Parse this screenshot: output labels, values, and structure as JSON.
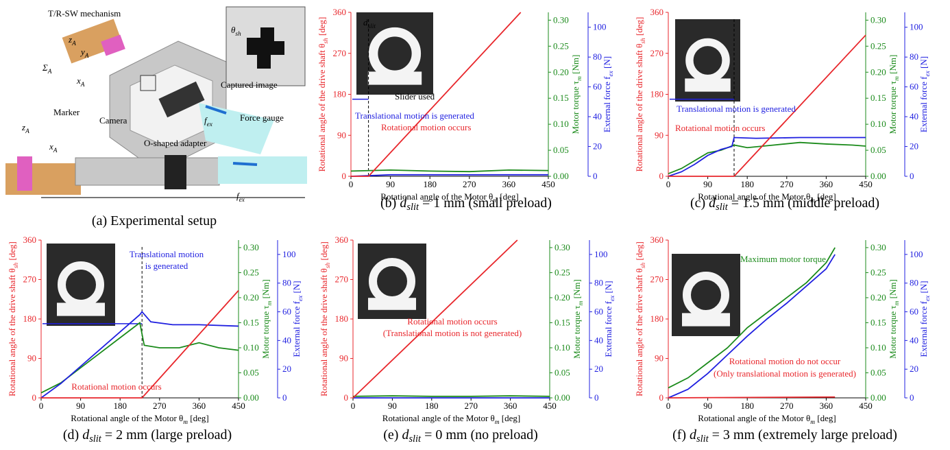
{
  "setup": {
    "labels": [
      [
        "T/R-SW mechanism"
      ],
      [
        "z",
        {
          "sub": "A"
        }
      ],
      [
        "y",
        {
          "sub": "A"
        }
      ],
      [
        "Σ",
        {
          "sub": "A"
        }
      ],
      [
        "x",
        {
          "sub": "A"
        }
      ],
      [
        "θ",
        {
          "sub": "sh"
        }
      ],
      [
        "Marker"
      ],
      [
        "Camera"
      ],
      [
        "Captured image"
      ],
      [
        "f",
        {
          "sub": "ex"
        }
      ],
      [
        "Force gauge"
      ],
      [
        "O-shaped adapter"
      ],
      [
        "z",
        {
          "sub": "A"
        }
      ],
      [
        "x",
        {
          "sub": "A"
        }
      ],
      [
        "f",
        {
          "sub": "ex"
        }
      ]
    ],
    "caption": "(a) Experimental setup"
  },
  "chart_data": [
    {
      "type": "line",
      "xlabel": [
        "Rotational angle of the Motor θ",
        {
          "sub": "m"
        },
        " [deg]"
      ],
      "ylabel": [
        "Rotational angle of the drive shaft θ",
        {
          "sub": "sh"
        },
        " [deg]"
      ],
      "y2label": [
        "Motor torque τ",
        {
          "sub": "m"
        },
        " [Nm]"
      ],
      "y3label": [
        "External force f",
        {
          "sub": "ex"
        },
        " [N]"
      ],
      "xlim": [
        0,
        450
      ],
      "xticks": [
        0,
        90,
        180,
        270,
        360,
        450
      ],
      "ylim": [
        0,
        360
      ],
      "yticks": [
        0,
        90,
        180,
        270,
        360
      ],
      "y2lim": [
        0,
        0.315
      ],
      "y2ticks": [
        {
          "value": 0,
          "label": "0.00"
        },
        {
          "value": 0.05,
          "label": "0.05"
        },
        {
          "value": 0.1,
          "label": "0.10"
        },
        {
          "value": 0.15,
          "label": "0.15"
        },
        {
          "value": 0.2,
          "label": "0.20"
        },
        {
          "value": 0.25,
          "label": "0.25"
        },
        {
          "value": 0.3,
          "label": "0.30"
        }
      ],
      "y3lim": [
        0,
        110
      ],
      "y3ticks": [
        0,
        20,
        40,
        60,
        80,
        100
      ],
      "series": [
        {
          "color": "#e8262b",
          "axis": "y",
          "x": [
            0,
            40,
            387
          ],
          "values": [
            0,
            0,
            360
          ]
        },
        {
          "color": "#1a8a1a",
          "axis": "y2",
          "x": [
            0,
            90,
            180,
            270,
            360,
            450
          ],
          "values": [
            0.01,
            0.012,
            0.01,
            0.009,
            0.012,
            0.011
          ]
        },
        {
          "color": "#1f1fe0",
          "axis": "y3",
          "x": [
            0,
            90,
            180,
            270,
            360,
            450
          ],
          "values": [
            0,
            1,
            1,
            1,
            1,
            1
          ]
        }
      ],
      "switch_x": 40,
      "annotations": [
        {
          "text": [
            "Translational motion is generated"
          ],
          "color": "#1f1fe0"
        },
        {
          "text": [
            "Rotational motion occurs"
          ],
          "color": "#e8262b"
        },
        {
          "text": [
            "Slider used"
          ],
          "color": "#000000"
        },
        {
          "text": [
            "d",
            {
              "sub": "slit"
            }
          ],
          "color": "#000000"
        }
      ],
      "caption": [
        "(b) ",
        "d",
        {
          "sub": "slit"
        },
        " = 1 mm (small preload)"
      ]
    },
    {
      "type": "line",
      "xlabel": [
        "Rotational angle of the Motor θ",
        {
          "sub": "m"
        },
        " [deg]"
      ],
      "ylabel": [
        "Rotational angle of the drive shaft θ",
        {
          "sub": "sh"
        },
        " [deg]"
      ],
      "y2label": [
        "Motor torque τ",
        {
          "sub": "m"
        },
        " [Nm]"
      ],
      "y3label": [
        "External force f",
        {
          "sub": "ex"
        },
        " [N]"
      ],
      "xlim": [
        0,
        450
      ],
      "xticks": [
        0,
        90,
        180,
        270,
        360,
        450
      ],
      "ylim": [
        0,
        360
      ],
      "yticks": [
        0,
        90,
        180,
        270,
        360
      ],
      "y2lim": [
        0,
        0.315
      ],
      "y2ticks": [
        {
          "value": 0,
          "label": "0.00"
        },
        {
          "value": 0.05,
          "label": "0.05"
        },
        {
          "value": 0.1,
          "label": "0.10"
        },
        {
          "value": 0.15,
          "label": "0.15"
        },
        {
          "value": 0.2,
          "label": "0.20"
        },
        {
          "value": 0.25,
          "label": "0.25"
        },
        {
          "value": 0.3,
          "label": "0.30"
        }
      ],
      "y3lim": [
        0,
        110
      ],
      "y3ticks": [
        0,
        20,
        40,
        60,
        80,
        100
      ],
      "series": [
        {
          "color": "#e8262b",
          "axis": "y",
          "x": [
            0,
            150,
            450
          ],
          "values": [
            0,
            0,
            310
          ]
        },
        {
          "color": "#1a8a1a",
          "axis": "y2",
          "x": [
            0,
            30,
            60,
            90,
            120,
            150,
            180,
            240,
            300,
            360,
            420,
            450
          ],
          "values": [
            0.005,
            0.015,
            0.03,
            0.045,
            0.05,
            0.06,
            0.055,
            0.06,
            0.065,
            0.062,
            0.06,
            0.058
          ]
        },
        {
          "color": "#1f1fe0",
          "axis": "y3",
          "x": [
            0,
            30,
            60,
            90,
            120,
            145,
            150,
            200,
            300,
            450
          ],
          "values": [
            0,
            3,
            8,
            14,
            18,
            20,
            26,
            25.5,
            26,
            26
          ]
        }
      ],
      "switch_x": 150,
      "annotations": [
        {
          "text": [
            "Translational motion is generated"
          ],
          "color": "#1f1fe0"
        },
        {
          "text": [
            "Rotational motion occurs"
          ],
          "color": "#e8262b"
        }
      ],
      "caption": [
        "(c) ",
        "d",
        {
          "sub": "slit"
        },
        " = 1.5 mm (middle preload)"
      ]
    },
    {
      "type": "line",
      "xlabel": [
        "Rotational angle of the Motor θ",
        {
          "sub": "m"
        },
        " [deg]"
      ],
      "ylabel": [
        "Rotational angle of the drive shaft θ",
        {
          "sub": "sh"
        },
        " [deg]"
      ],
      "y2label": [
        "Motor torque τ",
        {
          "sub": "m"
        },
        " [Nm]"
      ],
      "y3label": [
        "External force f",
        {
          "sub": "ex"
        },
        " [N]"
      ],
      "xlim": [
        0,
        450
      ],
      "xticks": [
        0,
        90,
        180,
        270,
        360,
        450
      ],
      "ylim": [
        0,
        360
      ],
      "yticks": [
        0,
        90,
        180,
        270,
        360
      ],
      "y2lim": [
        0,
        0.315
      ],
      "y2ticks": [
        {
          "value": 0,
          "label": "0.00"
        },
        {
          "value": 0.05,
          "label": "0.05"
        },
        {
          "value": 0.1,
          "label": "0.10"
        },
        {
          "value": 0.15,
          "label": "0.15"
        },
        {
          "value": 0.2,
          "label": "0.20"
        },
        {
          "value": 0.25,
          "label": "0.25"
        },
        {
          "value": 0.3,
          "label": "0.30"
        }
      ],
      "y3lim": [
        0,
        110
      ],
      "y3ticks": [
        0,
        20,
        40,
        60,
        80,
        100
      ],
      "series": [
        {
          "color": "#e8262b",
          "axis": "y",
          "x": [
            0,
            230,
            450
          ],
          "values": [
            0,
            0,
            245
          ]
        },
        {
          "color": "#1a8a1a",
          "axis": "y2",
          "x": [
            0,
            45,
            90,
            135,
            180,
            225,
            235,
            270,
            315,
            360,
            405,
            450
          ],
          "values": [
            0.01,
            0.03,
            0.06,
            0.09,
            0.12,
            0.15,
            0.105,
            0.1,
            0.1,
            0.11,
            0.1,
            0.095
          ]
        },
        {
          "color": "#1f1fe0",
          "axis": "y3",
          "x": [
            0,
            45,
            90,
            135,
            180,
            225,
            230,
            250,
            300,
            360,
            450
          ],
          "values": [
            0,
            10,
            22,
            34,
            46,
            58,
            60,
            53,
            51,
            51,
            50
          ]
        }
      ],
      "switch_x": 230,
      "annotations": [
        {
          "text": [
            "Translational motion"
          ],
          "color": "#1f1fe0"
        },
        {
          "text": [
            "is generated"
          ],
          "color": "#1f1fe0"
        },
        {
          "text": [
            "Rotational motion occurs"
          ],
          "color": "#e8262b"
        }
      ],
      "caption": [
        "(d) ",
        "d",
        {
          "sub": "slit"
        },
        " = 2 mm (large preload)"
      ]
    },
    {
      "type": "line",
      "xlabel": [
        "Rotational angle of the Motor θ",
        {
          "sub": "m"
        },
        " [deg]"
      ],
      "ylabel": [
        "Rotational angle of the drive shaft θ",
        {
          "sub": "sh"
        },
        " [deg]"
      ],
      "y2label": [
        "Motor torque τ",
        {
          "sub": "m"
        },
        " [Nm]"
      ],
      "y3label": [
        "External force f",
        {
          "sub": "ex"
        },
        " [N]"
      ],
      "xlim": [
        0,
        450
      ],
      "xticks": [
        0,
        90,
        180,
        270,
        360,
        450
      ],
      "ylim": [
        0,
        360
      ],
      "yticks": [
        0,
        90,
        180,
        270,
        360
      ],
      "y2lim": [
        0,
        0.315
      ],
      "y2ticks": [
        {
          "value": 0,
          "label": "0.00"
        },
        {
          "value": 0.05,
          "label": "0.05"
        },
        {
          "value": 0.1,
          "label": "0.10"
        },
        {
          "value": 0.15,
          "label": "0.15"
        },
        {
          "value": 0.2,
          "label": "0.20"
        },
        {
          "value": 0.25,
          "label": "0.25"
        },
        {
          "value": 0.3,
          "label": "0.30"
        }
      ],
      "y3lim": [
        0,
        110
      ],
      "y3ticks": [
        0,
        20,
        40,
        60,
        80,
        100
      ],
      "series": [
        {
          "color": "#e8262b",
          "axis": "y",
          "x": [
            0,
            376
          ],
          "values": [
            0,
            360
          ]
        },
        {
          "color": "#1a8a1a",
          "axis": "y2",
          "x": [
            0,
            90,
            180,
            270,
            360,
            450
          ],
          "values": [
            0.003,
            0.004,
            0.003,
            0.003,
            0.004,
            0.003
          ]
        },
        {
          "color": "#1f1fe0",
          "axis": "y3",
          "x": [
            0,
            90,
            180,
            270,
            360,
            450
          ],
          "values": [
            0,
            0,
            0,
            0,
            0,
            0
          ]
        }
      ],
      "annotations": [
        {
          "text": [
            "Rotational motion occurs"
          ],
          "color": "#e8262b"
        },
        {
          "text": [
            "(Translational motion is not generated)"
          ],
          "color": "#e8262b"
        }
      ],
      "caption": [
        "(e) ",
        "d",
        {
          "sub": "slit"
        },
        " = 0 mm (no preload)"
      ]
    },
    {
      "type": "line",
      "xlabel": [
        "Rotational angle of the Motor θ",
        {
          "sub": "m"
        },
        " [deg]"
      ],
      "ylabel": [
        "Rotational angle of the drive shaft θ",
        {
          "sub": "sh"
        },
        " [deg]"
      ],
      "y2label": [
        "Motor torque τ",
        {
          "sub": "m"
        },
        " [Nm]"
      ],
      "y3label": [
        "External force f",
        {
          "sub": "ex"
        },
        " [N]"
      ],
      "xlim": [
        0,
        450
      ],
      "xticks": [
        0,
        90,
        180,
        270,
        360,
        450
      ],
      "ylim": [
        0,
        360
      ],
      "yticks": [
        0,
        90,
        180,
        270,
        360
      ],
      "y2lim": [
        0,
        0.315
      ],
      "y2ticks": [
        {
          "value": 0,
          "label": "0.00"
        },
        {
          "value": 0.05,
          "label": "0.05"
        },
        {
          "value": 0.1,
          "label": "0.10"
        },
        {
          "value": 0.15,
          "label": "0.15"
        },
        {
          "value": 0.2,
          "label": "0.20"
        },
        {
          "value": 0.25,
          "label": "0.25"
        },
        {
          "value": 0.3,
          "label": "0.30"
        }
      ],
      "y3lim": [
        0,
        110
      ],
      "y3ticks": [
        0,
        20,
        40,
        60,
        80,
        100
      ],
      "series": [
        {
          "color": "#e8262b",
          "axis": "y",
          "x": [
            0,
            380
          ],
          "values": [
            0,
            2
          ]
        },
        {
          "color": "#1a8a1a",
          "axis": "y2",
          "x": [
            0,
            45,
            90,
            135,
            180,
            225,
            270,
            315,
            360,
            380
          ],
          "values": [
            0.02,
            0.04,
            0.07,
            0.1,
            0.14,
            0.17,
            0.2,
            0.23,
            0.27,
            0.3
          ]
        },
        {
          "color": "#1f1fe0",
          "axis": "y3",
          "x": [
            0,
            45,
            90,
            135,
            180,
            225,
            270,
            315,
            360,
            380
          ],
          "values": [
            0,
            6,
            17,
            30,
            43,
            55,
            66,
            78,
            90,
            100
          ]
        }
      ],
      "annotations": [
        {
          "text": [
            "Maximum motor torque"
          ],
          "color": "#1a8a1a"
        },
        {
          "text": [
            "Rotational motion do not occur"
          ],
          "color": "#e8262b"
        },
        {
          "text": [
            "(Only translational motion is generated)"
          ],
          "color": "#e8262b"
        }
      ],
      "caption": [
        "(f) ",
        "d",
        {
          "sub": "slit"
        },
        " = 3 mm (extremely large preload)"
      ]
    }
  ]
}
